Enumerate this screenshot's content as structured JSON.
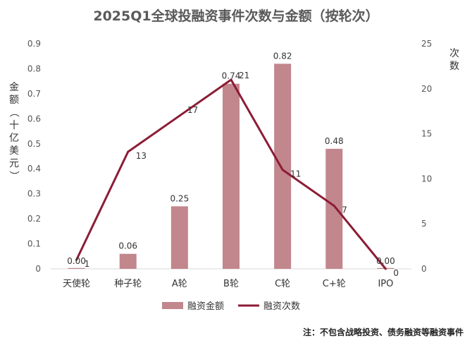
{
  "chart_data": {
    "type": "bar",
    "title": "2025Q1全球投融资事件次数与金额（按轮次）",
    "categories": [
      "天使轮",
      "种子轮",
      "A轮",
      "B轮",
      "C轮",
      "C+轮",
      "IPO"
    ],
    "y_left": {
      "label": "金额（十亿美元）",
      "ticks": [
        "0",
        "0.1",
        "0.2",
        "0.3",
        "0.4",
        "0.5",
        "0.6",
        "0.7",
        "0.8",
        "0.9"
      ],
      "range": [
        0,
        0.9
      ]
    },
    "y_right": {
      "label": "次数",
      "ticks": [
        "0",
        "5",
        "10",
        "15",
        "20",
        "25"
      ],
      "range": [
        0,
        25
      ]
    },
    "series": [
      {
        "name": "融资金额",
        "type": "bar",
        "axis": "left",
        "color": "#c2868d",
        "values": [
          0.0,
          0.06,
          0.25,
          0.74,
          0.82,
          0.48,
          0.0
        ],
        "labels": [
          "0.00",
          "0.06",
          "0.25",
          "0.74",
          "0.82",
          "0.48",
          "0.00"
        ]
      },
      {
        "name": "融资次数",
        "type": "line",
        "axis": "right",
        "color": "#8c1c35",
        "values": [
          1,
          13,
          17,
          21,
          11,
          7,
          0
        ],
        "labels": [
          "1",
          "13",
          "17",
          "21",
          "11",
          "7",
          "0"
        ]
      }
    ],
    "grid": false,
    "legend": "bottom"
  },
  "note": "注：不包含战略投资、债务融资等融资事件"
}
